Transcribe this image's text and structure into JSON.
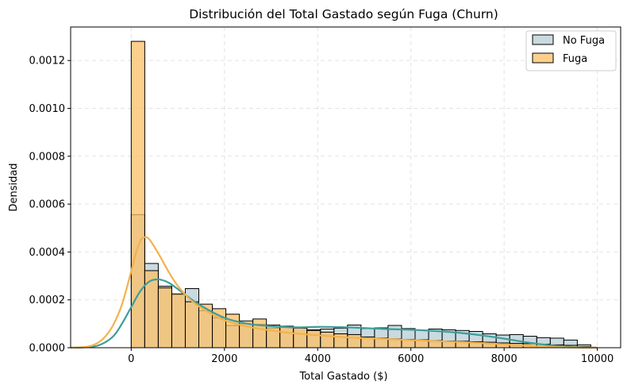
{
  "chart_data": {
    "type": "histogram",
    "title": "Distribución del Total Gastado según Fuga (Churn)",
    "xlabel": "Total Gastado ($)",
    "ylabel": "Densidad",
    "xlim": [
      -1300,
      10500
    ],
    "ylim": [
      0,
      0.00134
    ],
    "xticks": [
      0,
      2000,
      4000,
      6000,
      8000,
      10000
    ],
    "yticks": [
      0.0,
      0.0002,
      0.0004,
      0.0006,
      0.0008,
      0.001,
      0.0012
    ],
    "ytick_labels": [
      "0.0000",
      "0.0002",
      "0.0004",
      "0.0006",
      "0.0008",
      "0.0010",
      "0.0012"
    ],
    "grid": true,
    "legend_position": "top-right",
    "bin_start": 0,
    "bin_width": 290,
    "series": [
      {
        "name": "No Fuga",
        "color": "#b7cdd5",
        "kde_color": "#3c9e9a",
        "values": [
          0.000556,
          0.000352,
          0.000257,
          0.000222,
          0.000247,
          0.000155,
          0.000125,
          9.3e-05,
          0.0001,
          9.8e-05,
          8.2e-05,
          8.7e-05,
          8.5e-05,
          7.5e-05,
          7.8e-05,
          8.2e-05,
          9.5e-05,
          8e-05,
          8.3e-05,
          9.3e-05,
          8e-05,
          7.3e-05,
          7.8e-05,
          7.5e-05,
          7.2e-05,
          6.8e-05,
          5.8e-05,
          5.3e-05,
          5.5e-05,
          4.8e-05,
          4.2e-05,
          4e-05,
          3.2e-05,
          1.2e-05
        ],
        "kde": {
          "x": [
            -1300,
            -1000,
            -700,
            -400,
            -200,
            0,
            200,
            400,
            600,
            800,
            1000,
            1200,
            1500,
            2000,
            2500,
            3000,
            3500,
            4000,
            4500,
            5000,
            5500,
            6000,
            6500,
            7000,
            7500,
            8000,
            8500,
            9000,
            9500,
            10000
          ],
          "y": [
            0,
            2e-06,
            1e-05,
            4.5e-05,
            0.0001,
            0.00017,
            0.000238,
            0.000278,
            0.000285,
            0.000272,
            0.000245,
            0.000215,
            0.000175,
            0.000125,
            0.0001,
            9e-05,
            8.5e-05,
            8.7e-05,
            8.6e-05,
            8.2e-05,
            7.8e-05,
            7.5e-05,
            7e-05,
            6.3e-05,
            5.2e-05,
            3.8e-05,
            2.2e-05,
            1e-05,
            3e-06,
            5e-07
          ]
        }
      },
      {
        "name": "Fuga",
        "color": "#fbbf66",
        "kde_color": "#f5b14a",
        "values": [
          0.00128,
          0.000322,
          0.00025,
          0.000225,
          0.000192,
          0.000182,
          0.000163,
          0.00014,
          0.000112,
          0.00012,
          9.5e-05,
          9e-05,
          8.2e-05,
          7.2e-05,
          6.5e-05,
          5.8e-05,
          5.5e-05,
          4.5e-05,
          4e-05,
          3.7e-05,
          3.5e-05,
          3.3e-05,
          3e-05,
          2.8e-05,
          2.7e-05,
          2.5e-05,
          2.3e-05,
          2e-05,
          1.8e-05,
          1.7e-05,
          1.5e-05,
          1.2e-05,
          1e-05,
          5e-06
        ],
        "kde": {
          "x": [
            -1300,
            -1000,
            -800,
            -600,
            -400,
            -200,
            0,
            100,
            200,
            300,
            400,
            600,
            800,
            1000,
            1300,
            1600,
            2000,
            2500,
            3000,
            3500,
            4000,
            4500,
            5000,
            5500,
            6000,
            6500,
            7000,
            7500,
            8000,
            8500,
            9000,
            10000
          ],
          "y": [
            0,
            3e-06,
            1.2e-05,
            3.8e-05,
            9e-05,
            0.00018,
            0.00032,
            0.000395,
            0.000448,
            0.000462,
            0.00045,
            0.000388,
            0.000318,
            0.000258,
            0.000195,
            0.000155,
            0.000115,
            8.8e-05,
            7.2e-05,
            6e-05,
            5.2e-05,
            4.5e-05,
            4e-05,
            3.6e-05,
            3.2e-05,
            2.8e-05,
            2.4e-05,
            2e-05,
            1.4e-05,
            8e-06,
            3e-06,
            0
          ]
        }
      }
    ]
  }
}
